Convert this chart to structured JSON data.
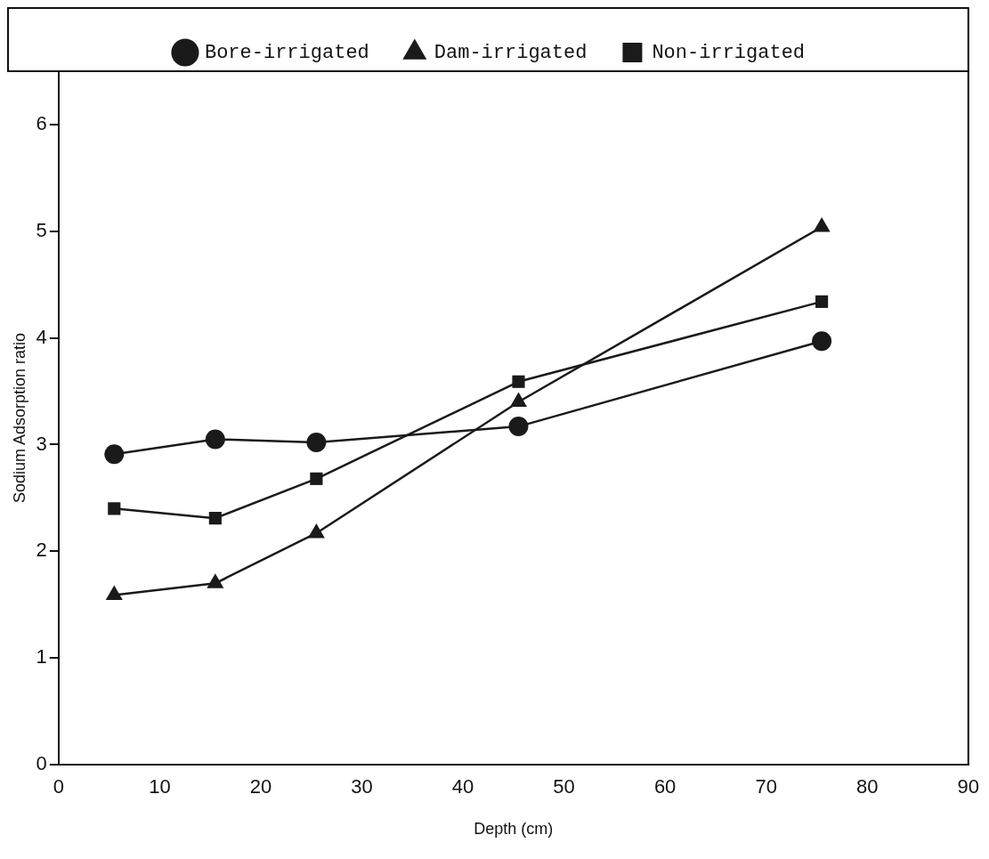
{
  "chart_data": {
    "type": "line",
    "xlabel": "Depth (cm)",
    "ylabel": "Sodium Adsorption ratio",
    "x": [
      5.5,
      15.5,
      25.5,
      45.5,
      75.5
    ],
    "series": [
      {
        "name": "Bore-irrigated",
        "color": "#1a1a1a",
        "marker": "circle",
        "values": [
          2.91,
          3.05,
          3.02,
          3.17,
          3.97
        ]
      },
      {
        "name": "Dam-irrigated",
        "color": "#1a1a1a",
        "marker": "triangle",
        "values": [
          1.59,
          1.7,
          2.17,
          3.4,
          5.04
        ]
      },
      {
        "name": "Non-irrigated",
        "color": "#1a1a1a",
        "marker": "square",
        "values": [
          2.4,
          2.31,
          2.68,
          3.59,
          4.34
        ]
      }
    ],
    "xlim": [
      0,
      90
    ],
    "xticks": [
      0,
      10,
      20,
      30,
      40,
      50,
      60,
      70,
      80,
      90
    ],
    "ylim": [
      0,
      6.5
    ],
    "yticks": [
      0,
      1,
      2,
      3,
      4,
      5,
      6
    ],
    "grid": false,
    "legend": "top",
    "line_style": "solid"
  }
}
